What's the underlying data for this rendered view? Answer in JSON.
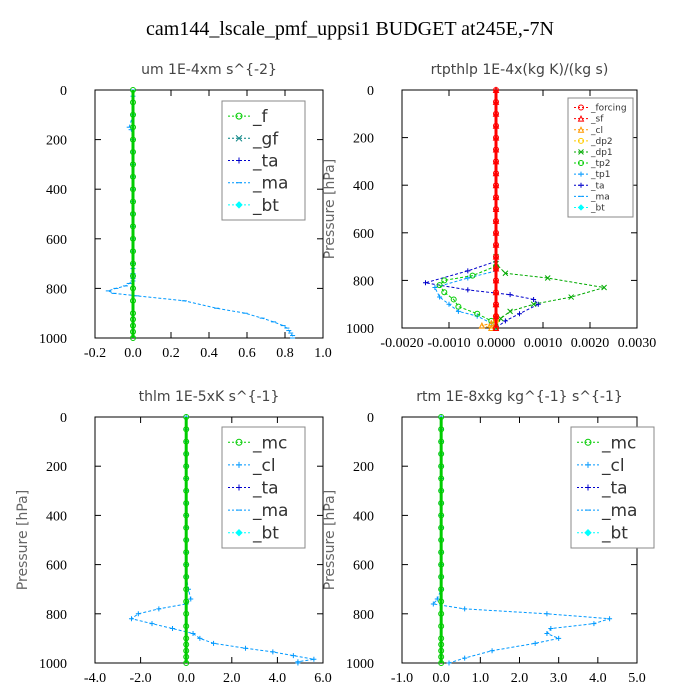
{
  "figure_title": "cam144_lscale_pmf_uppsi1  BUDGET at245E,-7N",
  "colors": {
    "green": "#00cc00",
    "teal": "#008080",
    "blue": "#0000cc",
    "lightblue": "#0099ff",
    "cyan": "#00ffff",
    "red": "#ff0000",
    "orange": "#ff9900",
    "yellow": "#ffcc00",
    "darkgreen": "#00aa00"
  },
  "chart_data": [
    {
      "type": "line",
      "title": "um  1E-4xm s^{-2}",
      "ylabel": "Pressure [hPa]",
      "ylabel_shown": false,
      "xlim": [
        -0.2,
        1.0
      ],
      "ylim": [
        1000,
        0
      ],
      "xticks": [
        "-0.2",
        "0.0",
        "0.2",
        "0.4",
        "0.6",
        "0.8",
        "1.0"
      ],
      "xtick_values": [
        -0.2,
        0.0,
        0.2,
        0.4,
        0.6,
        0.8,
        1.0
      ],
      "yticks": [
        "0",
        "200",
        "400",
        "600",
        "800",
        "1000"
      ],
      "ytick_values": [
        0,
        200,
        400,
        600,
        800,
        1000
      ],
      "legend_position": "top-right",
      "legend_size": "large",
      "series": [
        {
          "name": "_f",
          "color": "#00cc00",
          "marker": "circle",
          "x": [
            0,
            0,
            0,
            0,
            0,
            0,
            0,
            0,
            0,
            0,
            0,
            0,
            0,
            0,
            0,
            0,
            0,
            0,
            0,
            0,
            0,
            0,
            0
          ],
          "y": [
            0,
            50,
            100,
            150,
            200,
            250,
            300,
            350,
            400,
            450,
            500,
            550,
            600,
            650,
            700,
            750,
            800,
            850,
            900,
            925,
            950,
            975,
            1000
          ]
        },
        {
          "name": "_gf",
          "color": "#008080",
          "marker": "x",
          "x": [],
          "y": []
        },
        {
          "name": "_ta",
          "color": "#0000cc",
          "marker": "plus",
          "x": [],
          "y": []
        },
        {
          "name": "_ma",
          "color": "#0099ff",
          "marker": "dash",
          "x": [
            0,
            0,
            0,
            -0.02,
            -0.01,
            0,
            0,
            0,
            0,
            0,
            0,
            0,
            0,
            0,
            0,
            0,
            0,
            0,
            0,
            0,
            0,
            -0.02,
            -0.04,
            -0.09,
            -0.13,
            -0.1,
            0.02,
            0.27,
            0.44,
            0.59,
            0.68,
            0.74,
            0.79,
            0.81,
            0.82,
            0.83,
            0.84,
            0.84
          ],
          "y": [
            0,
            25,
            100,
            150,
            160,
            200,
            250,
            300,
            350,
            400,
            450,
            500,
            550,
            600,
            650,
            700,
            720,
            740,
            750,
            760,
            770,
            780,
            790,
            800,
            810,
            820,
            830,
            850,
            880,
            900,
            920,
            935,
            950,
            960,
            970,
            980,
            990,
            1000
          ]
        },
        {
          "name": "_bt",
          "color": "#00ffff",
          "marker": "diamond",
          "x": [],
          "y": []
        }
      ]
    },
    {
      "type": "line",
      "title": "rtpthlp  1E-4x(kg K)/(kg s)",
      "ylabel": "Pressure [hPa]",
      "xlim": [
        -0.002,
        0.003
      ],
      "ylim": [
        1000,
        0
      ],
      "xticks": [
        "-0.0020",
        "-0.0010",
        "0.0000",
        "0.0010",
        "0.0020",
        "0.0030"
      ],
      "xtick_values": [
        -0.002,
        -0.001,
        0.0,
        0.001,
        0.002,
        0.003
      ],
      "yticks": [
        "0",
        "200",
        "400",
        "600",
        "800",
        "1000"
      ],
      "ytick_values": [
        0,
        200,
        400,
        600,
        800,
        1000
      ],
      "legend_position": "top-right",
      "legend_size": "small",
      "series": [
        {
          "name": "_forcing",
          "color": "#ff0000",
          "marker": "circle",
          "x": [
            0,
            0,
            0,
            0,
            0,
            0,
            0,
            0,
            0,
            0,
            0,
            0,
            0,
            0,
            0,
            0,
            0,
            0,
            0,
            0,
            0
          ],
          "y": [
            0,
            50,
            100,
            150,
            200,
            250,
            300,
            350,
            400,
            450,
            500,
            550,
            600,
            650,
            700,
            750,
            800,
            850,
            900,
            950,
            1000
          ]
        },
        {
          "name": "_sf",
          "color": "#ff0000",
          "marker": "triangle",
          "x": [
            0,
            0,
            0,
            0,
            0,
            0,
            0,
            0,
            0,
            0,
            0,
            0,
            0,
            0,
            0,
            0,
            0,
            0,
            0,
            0,
            0
          ],
          "y": [
            0,
            50,
            100,
            150,
            200,
            250,
            300,
            350,
            400,
            450,
            500,
            550,
            600,
            650,
            700,
            750,
            800,
            850,
            900,
            950,
            1000
          ]
        },
        {
          "name": "_cl",
          "color": "#ff9900",
          "marker": "triangle",
          "x": [
            0,
            0,
            0,
            -0.0001,
            -0.0003,
            -0.0001
          ],
          "y": [
            900,
            940,
            960,
            980,
            990,
            1000
          ]
        },
        {
          "name": "_dp2",
          "color": "#ffcc00",
          "marker": "circle",
          "x": [
            0,
            0,
            -0.0001,
            0
          ],
          "y": [
            950,
            970,
            990,
            1000
          ]
        },
        {
          "name": "_dp1",
          "color": "#00aa00",
          "marker": "x",
          "x": [
            0,
            0,
            0.0002,
            0.0011,
            0.0023,
            0.0016,
            0.0008,
            0.0003,
            0.0001,
            0
          ],
          "y": [
            700,
            730,
            770,
            790,
            830,
            870,
            900,
            930,
            960,
            1000
          ]
        },
        {
          "name": "_tp2",
          "color": "#00cc00",
          "marker": "circle",
          "x": [
            0,
            -0.0005,
            -0.0011,
            -0.0012,
            -0.0011,
            -0.0009,
            -0.0008,
            -0.0004,
            -0.0001,
            0
          ],
          "y": [
            740,
            780,
            800,
            820,
            850,
            880,
            910,
            940,
            970,
            1000
          ]
        },
        {
          "name": "_tp1",
          "color": "#0099ff",
          "marker": "plus",
          "x": [
            0,
            -0.0006,
            -0.0013,
            -0.0012,
            -0.001,
            -0.0008,
            -0.0004,
            -0.0001,
            0
          ],
          "y": [
            760,
            790,
            830,
            870,
            900,
            930,
            950,
            980,
            1000
          ]
        },
        {
          "name": "_ta",
          "color": "#0000cc",
          "marker": "plus",
          "x": [
            0,
            -0.0006,
            -0.0015,
            -0.0006,
            0.0003,
            0.0008,
            0.0009,
            0.0005,
            0.0002,
            0
          ],
          "y": [
            720,
            760,
            810,
            840,
            860,
            880,
            900,
            940,
            970,
            1000
          ]
        },
        {
          "name": "_ma",
          "color": "#0099ff",
          "marker": "dash",
          "x": [],
          "y": []
        },
        {
          "name": "_bt",
          "color": "#00ffff",
          "marker": "diamond",
          "x": [],
          "y": []
        }
      ]
    },
    {
      "type": "line",
      "title": "thlm  1E-5xK s^{-1}",
      "ylabel": "Pressure [hPa]",
      "xlim": [
        -4.0,
        6.0
      ],
      "ylim": [
        1000,
        0
      ],
      "xticks": [
        "-4.0",
        "-2.0",
        "0.0",
        "2.0",
        "4.0",
        "6.0"
      ],
      "xtick_values": [
        -4.0,
        -2.0,
        0.0,
        2.0,
        4.0,
        6.0
      ],
      "yticks": [
        "0",
        "200",
        "400",
        "600",
        "800",
        "1000"
      ],
      "ytick_values": [
        0,
        200,
        400,
        600,
        800,
        1000
      ],
      "legend_position": "top-right",
      "legend_size": "large",
      "series": [
        {
          "name": "_mc",
          "color": "#00cc00",
          "marker": "circle",
          "x": [
            0,
            0,
            0,
            0,
            0,
            0,
            0,
            0,
            0,
            0,
            0,
            0,
            0,
            0,
            0,
            0,
            0,
            0,
            0,
            0,
            0,
            0,
            0
          ],
          "y": [
            0,
            50,
            100,
            150,
            200,
            250,
            300,
            350,
            400,
            450,
            500,
            550,
            600,
            650,
            700,
            750,
            800,
            850,
            900,
            925,
            950,
            975,
            1000
          ]
        },
        {
          "name": "_cl",
          "color": "#0099ff",
          "marker": "plus",
          "x": [
            0,
            0,
            0,
            0,
            0,
            0,
            0,
            0,
            0,
            0,
            0,
            0,
            0,
            0,
            0.1,
            0.2,
            0,
            -1.2,
            -2.1,
            -2.4,
            -1.5,
            -0.6,
            0.3,
            0.6,
            1.2,
            2.6,
            3.8,
            4.7,
            5.6,
            4.9,
            4.9
          ],
          "y": [
            0,
            50,
            100,
            150,
            200,
            250,
            300,
            350,
            400,
            450,
            500,
            550,
            600,
            650,
            700,
            740,
            760,
            780,
            800,
            820,
            840,
            860,
            880,
            900,
            920,
            940,
            955,
            970,
            985,
            995,
            1000
          ]
        },
        {
          "name": "_ta",
          "color": "#0000cc",
          "marker": "plus",
          "x": [],
          "y": []
        },
        {
          "name": "_ma",
          "color": "#0099ff",
          "marker": "dash",
          "x": [],
          "y": []
        },
        {
          "name": "_bt",
          "color": "#00ffff",
          "marker": "diamond",
          "x": [],
          "y": []
        }
      ]
    },
    {
      "type": "line",
      "title": "rtm  1E-8xkg kg^{-1} s^{-1}",
      "ylabel": "Pressure [hPa]",
      "xlim": [
        -1.0,
        5.0
      ],
      "ylim": [
        1000,
        0
      ],
      "xticks": [
        "-1.0",
        "0.0",
        "1.0",
        "2.0",
        "3.0",
        "4.0",
        "5.0"
      ],
      "xtick_values": [
        -1.0,
        0.0,
        1.0,
        2.0,
        3.0,
        4.0,
        5.0
      ],
      "yticks": [
        "0",
        "200",
        "400",
        "600",
        "800",
        "1000"
      ],
      "ytick_values": [
        0,
        200,
        400,
        600,
        800,
        1000
      ],
      "legend_position": "top-right",
      "legend_size": "large",
      "series": [
        {
          "name": "_mc",
          "color": "#00cc00",
          "marker": "circle",
          "x": [
            0,
            0,
            0,
            0,
            0,
            0,
            0,
            0,
            0,
            0,
            0,
            0,
            0,
            0,
            0,
            0,
            0,
            0,
            0,
            0,
            0,
            0,
            0
          ],
          "y": [
            0,
            50,
            100,
            150,
            200,
            250,
            300,
            350,
            400,
            450,
            500,
            550,
            600,
            650,
            700,
            750,
            800,
            850,
            900,
            925,
            950,
            975,
            1000
          ]
        },
        {
          "name": "_cl",
          "color": "#0099ff",
          "marker": "plus",
          "x": [
            0,
            0,
            0,
            0,
            0,
            0,
            0,
            0,
            0,
            0,
            0,
            0,
            0,
            0,
            0,
            -0.1,
            -0.2,
            0.6,
            2.7,
            4.3,
            3.9,
            2.8,
            2.7,
            3.0,
            2.4,
            1.3,
            0.6,
            0.2
          ],
          "y": [
            0,
            50,
            100,
            150,
            200,
            250,
            300,
            350,
            400,
            450,
            500,
            550,
            600,
            650,
            700,
            740,
            760,
            780,
            800,
            820,
            840,
            860,
            880,
            900,
            920,
            950,
            980,
            1000
          ]
        },
        {
          "name": "_ta",
          "color": "#0000cc",
          "marker": "plus",
          "x": [],
          "y": []
        },
        {
          "name": "_ma",
          "color": "#0099ff",
          "marker": "dash",
          "x": [],
          "y": []
        },
        {
          "name": "_bt",
          "color": "#00ffff",
          "marker": "diamond",
          "x": [],
          "y": []
        }
      ]
    }
  ]
}
